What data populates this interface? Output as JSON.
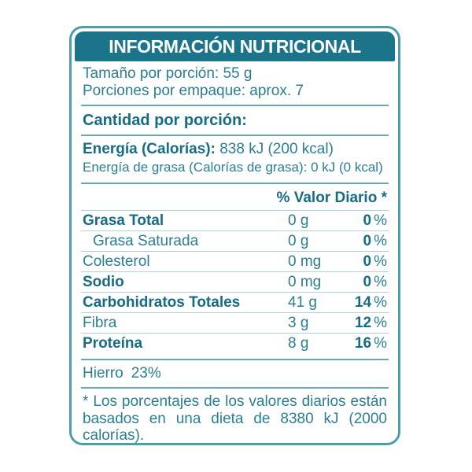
{
  "colors": {
    "teal_header_bg": "#1b7489",
    "teal_bold_text": "#176c85",
    "teal_regular_text": "#2a7f91",
    "border": "#4d9dab",
    "section_divider": "#65a9b8",
    "row_line": "#b0cfd8",
    "header_text": "#ffffff"
  },
  "label": {
    "header": {
      "title": "INFORMACIÓN NUTRICIONAL"
    },
    "serving": {
      "size_line": "Tamaño por porción: 55 g",
      "per_package_line": "Porciones por empaque: aprox. 7"
    },
    "amount_heading": "Cantidad por porción:",
    "energy": {
      "label": "Energía (Calorías):",
      "value": "838 kJ (200 kcal)",
      "fat_line": "Energía de grasa (Calorías de grasa): 0 kJ (0 kcal)"
    },
    "table": {
      "column_header": "% Valor Diario *",
      "percent_sign": "%",
      "rows": [
        {
          "label": "Grasa Total",
          "amount": "0 g",
          "dv": "0"
        },
        {
          "label": "Grasa Saturada",
          "amount": "0 g",
          "dv": "0"
        },
        {
          "label": "Colesterol",
          "amount": "0 mg",
          "dv": "0"
        },
        {
          "label": "Sodio",
          "amount": "0 mg",
          "dv": "0"
        },
        {
          "label": "Carbohidratos Totales",
          "amount": "41 g",
          "dv": "14"
        },
        {
          "label": "Fibra",
          "amount": "3 g",
          "dv": "12"
        },
        {
          "label": "Proteína",
          "amount": "8 g",
          "dv": "16"
        }
      ]
    },
    "minerals": {
      "name": "Hierro",
      "value": "23%"
    },
    "footnote": "* Los porcentajes de los valores diarios están basados en una dieta de 8380 kJ (2000 calorías)."
  }
}
